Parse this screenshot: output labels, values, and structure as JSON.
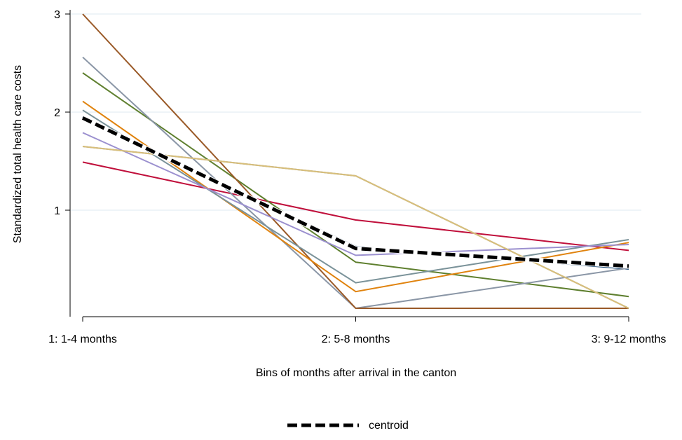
{
  "chart_data": {
    "type": "line",
    "xlabel": "Bins of months after arrival in the canton",
    "ylabel": "Standardized total health care costs",
    "categories": [
      "1: 1-4 months",
      "2: 5-8 months",
      "3: 9-12 months"
    ],
    "yticks": [
      "1",
      "2",
      "3"
    ],
    "yticks_values": [
      1,
      2,
      3
    ],
    "ylim": [
      -0.02,
      3.02
    ],
    "grid": true,
    "legend_position": "bottom-center",
    "series": [
      {
        "color": "#1f4e79",
        "values": [
          1.95,
          0.63,
          0.4
        ]
      },
      {
        "color": "#c00f3b",
        "values": [
          1.49,
          0.9,
          0.59
        ]
      },
      {
        "color": "#5e7f2e",
        "values": [
          2.4,
          0.47,
          0.12
        ]
      },
      {
        "color": "#8a96a6",
        "values": [
          2.56,
          0.0,
          0.41
        ]
      },
      {
        "color": "#9a5a28",
        "values": [
          3.0,
          0.0,
          0.0
        ]
      },
      {
        "color": "#e0830e",
        "values": [
          2.11,
          0.17,
          0.67
        ]
      },
      {
        "color": "#7a9299",
        "values": [
          2.02,
          0.26,
          0.7
        ]
      },
      {
        "color": "#9b90cf",
        "values": [
          1.79,
          0.54,
          0.65
        ]
      },
      {
        "color": "#8e8e8e",
        "values": [
          1.65,
          1.35,
          0.0
        ]
      },
      {
        "color": "#d8bf7a",
        "values": [
          1.65,
          1.35,
          0.0
        ]
      },
      {
        "name": "centroid",
        "color": "#000000",
        "dashed": true,
        "values": [
          1.94,
          0.61,
          0.43
        ]
      }
    ]
  }
}
